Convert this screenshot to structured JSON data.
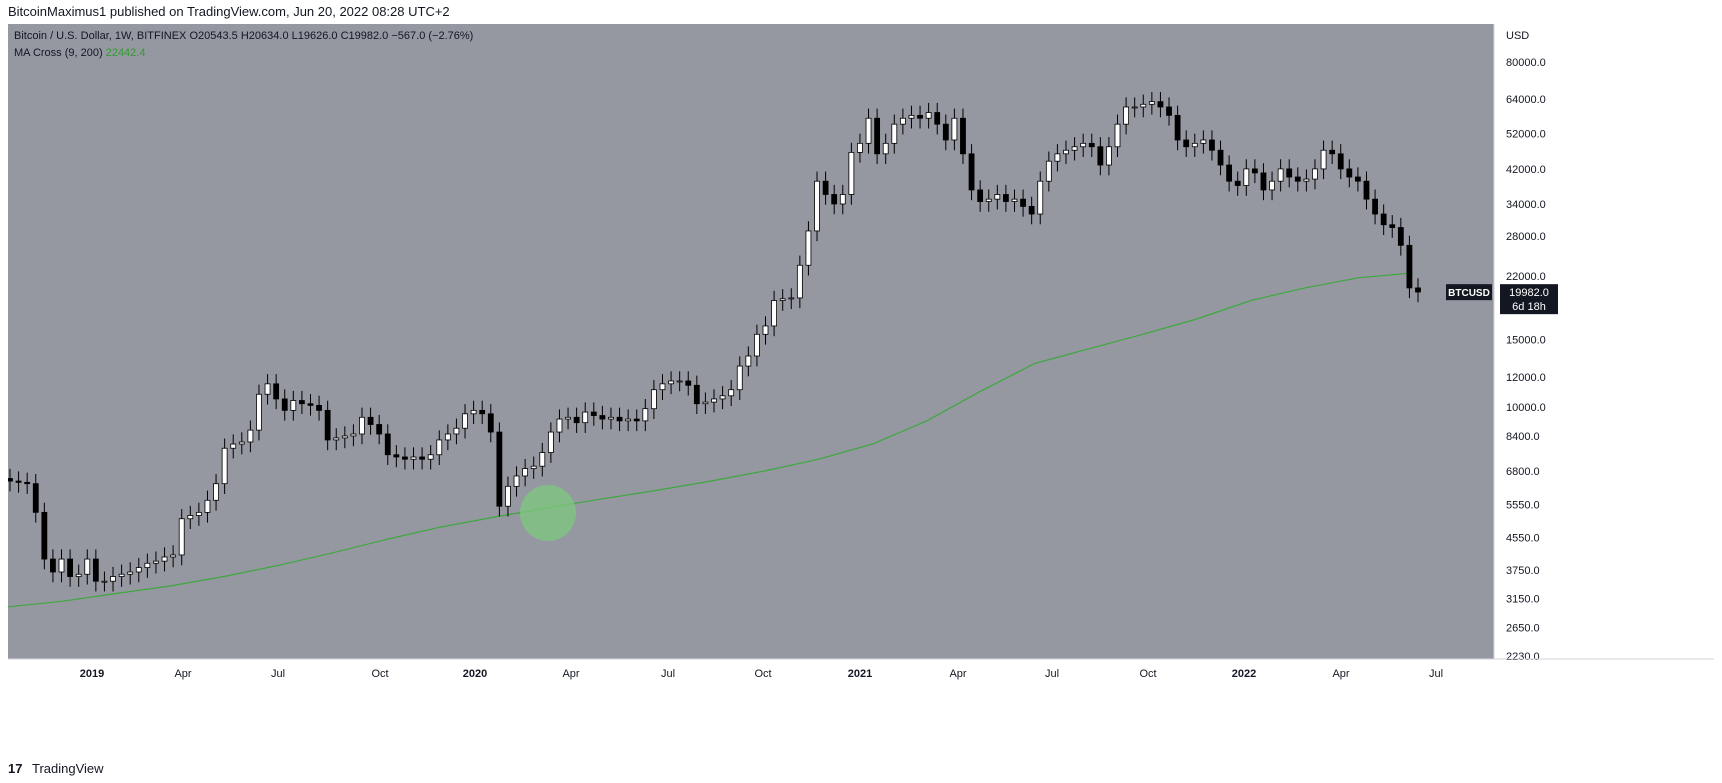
{
  "header": {
    "text": "BitcoinMaximus1 published on TradingView.com, Jun 20, 2022 08:28 UTC+2"
  },
  "footer": {
    "logo": "17",
    "text": "TradingView"
  },
  "legend": {
    "symbol": "Bitcoin / U.S. Dollar, 1W, BITFINEX",
    "o_label": "O",
    "o": "20543.5",
    "h_label": "H",
    "h": "20634.0",
    "l_label": "L",
    "l": "19626.0",
    "c_label": "C",
    "c": "19982.0",
    "change": "−567.0 (−2.76%)",
    "ma_label": "MA Cross (9, 200)",
    "ma_value": "22442.4"
  },
  "colors": {
    "background": "#9598a1",
    "up": "#ffffff",
    "down": "#000000",
    "ma": "#3ea83e",
    "highlight": "#7ec87e"
  },
  "chart_data": {
    "type": "candlestick",
    "symbol": "BTCUSD",
    "interval": "1W",
    "exchange": "BITFINEX",
    "y_scale": "log",
    "y_unit": "USD",
    "y_ticks": [
      "80000.0",
      "64000.0",
      "52000.0",
      "42000.0",
      "34000.0",
      "28000.0",
      "22000.0",
      "15000.0",
      "12000.0",
      "10000.0",
      "8400.0",
      "6800.0",
      "5550.0",
      "4550.0",
      "3750.0",
      "3150.0",
      "2650.0",
      "2230.0"
    ],
    "x_ticks": [
      "2019",
      "Apr",
      "Jul",
      "Oct",
      "2020",
      "Apr",
      "Jul",
      "Oct",
      "2021",
      "Apr",
      "Jul",
      "Oct",
      "2022",
      "Apr",
      "Jul"
    ],
    "x_tick_bold": [
      true,
      false,
      false,
      false,
      true,
      false,
      false,
      false,
      true,
      false,
      false,
      false,
      true,
      false,
      false
    ],
    "last_price_label": "BTCUSD",
    "last_price": "19982.0",
    "countdown": "6d 18h",
    "series_close": [
      6400,
      6350,
      6300,
      5300,
      4000,
      3700,
      4000,
      3600,
      3650,
      4000,
      3500,
      3500,
      3600,
      3650,
      3700,
      3800,
      3900,
      3950,
      4050,
      4100,
      5100,
      5200,
      5300,
      5700,
      6300,
      7800,
      8000,
      8100,
      8700,
      10800,
      11500,
      10500,
      9800,
      10400,
      10200,
      10100,
      9800,
      8200,
      8300,
      8400,
      8500,
      9400,
      9000,
      8500,
      7500,
      7400,
      7300,
      7400,
      7300,
      7500,
      8200,
      8500,
      8800,
      9600,
      9800,
      9600,
      8600,
      5500,
      6200,
      6600,
      6900,
      7000,
      7600,
      8600,
      9300,
      9400,
      9100,
      9700,
      9500,
      9300,
      9400,
      9200,
      9300,
      9200,
      9900,
      11100,
      11500,
      11700,
      11700,
      11400,
      10200,
      10300,
      10500,
      10700,
      11100,
      12800,
      13600,
      15500,
      16300,
      19000,
      19200,
      19300,
      23500,
      28900,
      39000,
      36000,
      34000,
      36000,
      46400,
      49000,
      57000,
      46000,
      49000,
      55000,
      57000,
      58000,
      57000,
      59000,
      55000,
      50000,
      57000,
      46000,
      37000,
      34500,
      35000,
      36000,
      34500,
      35000,
      33500,
      32000,
      39000,
      44000,
      46000,
      47000,
      48000,
      49000,
      48000,
      43000,
      48000,
      55000,
      61000,
      61000,
      62000,
      63000,
      61000,
      58000,
      50000,
      48000,
      49000,
      50000,
      47000,
      43000,
      39000,
      38000,
      42000,
      41000,
      37000,
      39000,
      42000,
      40000,
      39000,
      39500,
      42000,
      47000,
      46000,
      42000,
      40000,
      39000,
      35000,
      32000,
      30000,
      29500,
      26500,
      20500,
      20000
    ],
    "series_open": [
      6500,
      6400,
      6350,
      6300,
      5300,
      4000,
      3700,
      4000,
      3600,
      3650,
      4000,
      3500,
      3500,
      3600,
      3650,
      3700,
      3800,
      3900,
      3950,
      4050,
      4100,
      5100,
      5200,
      5300,
      5700,
      6300,
      7800,
      8000,
      8100,
      8700,
      10800,
      11500,
      10500,
      9800,
      10400,
      10200,
      10100,
      9800,
      8200,
      8300,
      8400,
      8500,
      9400,
      9000,
      8500,
      7500,
      7400,
      7300,
      7400,
      7300,
      7500,
      8200,
      8500,
      8800,
      9600,
      9800,
      9600,
      8600,
      5500,
      6200,
      6600,
      6900,
      7000,
      7600,
      8600,
      9300,
      9400,
      9100,
      9700,
      9500,
      9300,
      9400,
      9200,
      9300,
      9200,
      9900,
      11100,
      11500,
      11700,
      11700,
      11400,
      10200,
      10300,
      10500,
      10700,
      11100,
      12800,
      13600,
      15500,
      16300,
      19000,
      19200,
      19300,
      23500,
      28900,
      39000,
      36000,
      34000,
      36000,
      46400,
      49000,
      57000,
      46000,
      49000,
      55000,
      57000,
      58000,
      57000,
      59000,
      55000,
      50000,
      57000,
      46000,
      37000,
      34500,
      35000,
      36000,
      34500,
      35000,
      33500,
      32000,
      39000,
      44000,
      46000,
      47000,
      48000,
      49000,
      48000,
      43000,
      48000,
      55000,
      61000,
      61000,
      62000,
      63000,
      61000,
      58000,
      50000,
      48000,
      49000,
      50000,
      47000,
      43000,
      39000,
      38000,
      42000,
      41000,
      37000,
      39000,
      42000,
      40000,
      39000,
      39500,
      42000,
      47000,
      46000,
      42000,
      40000,
      39000,
      35000,
      32000,
      30000,
      29500,
      26500,
      20500
    ],
    "ma200": [
      3000,
      3100,
      3250,
      3400,
      3600,
      3850,
      4150,
      4500,
      4850,
      5150,
      5450,
      5750,
      6050,
      6400,
      6800,
      7300,
      8000,
      9200,
      11000,
      13000,
      14200,
      15500,
      17000,
      19000,
      20500,
      21800,
      22440
    ],
    "highlight_note": "circle near March 2020 low touching MA"
  }
}
